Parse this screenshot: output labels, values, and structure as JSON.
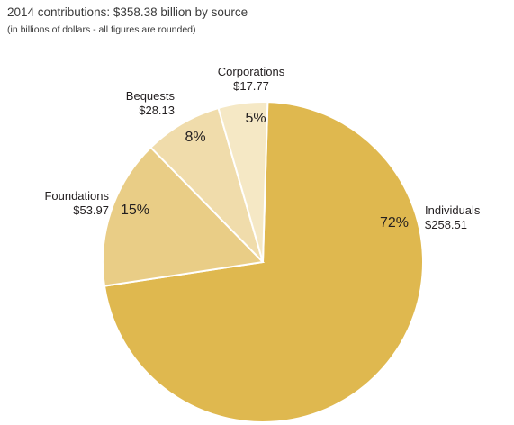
{
  "chart_data": {
    "type": "pie",
    "title": "2014 contributions: $358.38 billion by source",
    "subtitle": "(in billions of dollars - all figures are rounded)",
    "categories": [
      "Individuals",
      "Foundations",
      "Bequests",
      "Corporations"
    ],
    "values": [
      258.51,
      53.97,
      28.13,
      17.77
    ],
    "value_labels": [
      "$258.51",
      "$53.97",
      "$28.13",
      "$17.77"
    ],
    "percent_labels": [
      "72%",
      "15%",
      "8%",
      "5%"
    ],
    "colors": [
      "#dfb84f",
      "#e9cd86",
      "#f0dcab",
      "#f5e8c5"
    ]
  }
}
